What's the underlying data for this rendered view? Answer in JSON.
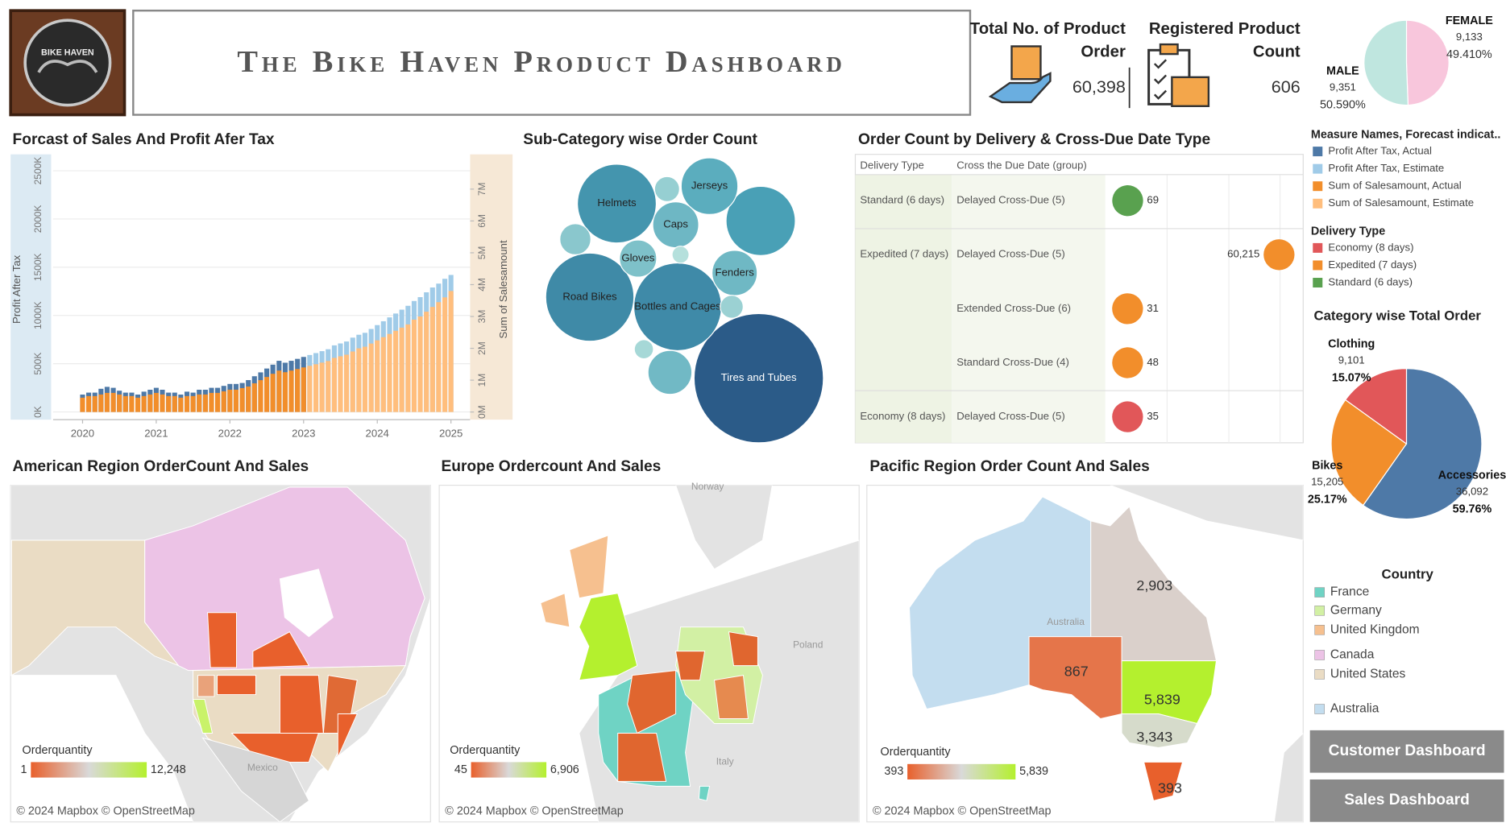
{
  "header": {
    "logo_text": "BIKE HAVEN",
    "title": "The Bike Haven Product Dashboard"
  },
  "kpis": [
    {
      "title": "Total No. of Product Order",
      "value": "60,398"
    },
    {
      "title": "Registered Product Count",
      "value": "606"
    }
  ],
  "chart_data": [
    {
      "type": "pie",
      "categories": [
        "FEMALE",
        "MALE"
      ],
      "values": [
        9133,
        9351
      ],
      "value_labels": [
        "9,133",
        "9,351"
      ],
      "percent_labels": [
        "49.410%",
        "50.590%"
      ],
      "colors": [
        "#f8c6dc",
        "#bfe6df"
      ]
    },
    {
      "type": "bar",
      "title": "Forcast of Sales And Profit Afer Tax",
      "y_label": "Profit After Tax",
      "y2_label": "Sum of Salesamount",
      "legend_title": "Measure Names, Forecast indicat..",
      "x": [
        2020,
        2020.083,
        2020.167,
        2020.25,
        2020.333,
        2020.417,
        2020.5,
        2020.583,
        2020.667,
        2020.75,
        2020.833,
        2020.917,
        2021,
        2021.083,
        2021.167,
        2021.25,
        2021.333,
        2021.417,
        2021.5,
        2021.583,
        2021.667,
        2021.75,
        2021.833,
        2021.917,
        2022,
        2022.083,
        2022.167,
        2022.25,
        2022.333,
        2022.417,
        2022.5,
        2022.583,
        2022.667,
        2022.75,
        2022.833,
        2022.917,
        2023,
        2023.083,
        2023.167,
        2023.25,
        2023.333,
        2023.417,
        2023.5,
        2023.583,
        2023.667,
        2023.75,
        2023.833,
        2023.917,
        2024,
        2024.083,
        2024.167,
        2024.25,
        2024.333,
        2024.417,
        2024.5,
        2024.583,
        2024.667,
        2024.75,
        2024.833,
        2024.917,
        2025
      ],
      "xlim": [
        2019.6,
        2025.26
      ],
      "xticks": [
        2020,
        2021,
        2022,
        2023,
        2024,
        2025
      ],
      "ylim": [
        -80000,
        2620000
      ],
      "yticks": [
        {
          "value": 0,
          "label": "0K"
        },
        {
          "value": 500000,
          "label": "500K"
        },
        {
          "value": 1000000,
          "label": "1000K"
        },
        {
          "value": 1500000,
          "label": "1500K"
        },
        {
          "value": 2000000,
          "label": "2000K"
        },
        {
          "value": 2500000,
          "label": "2500K"
        }
      ],
      "y2lim": [
        -240000,
        7940000
      ],
      "y2ticks": [
        {
          "value": 0,
          "label": "0M"
        },
        {
          "value": 1000000,
          "label": "1M"
        },
        {
          "value": 2000000,
          "label": "2M"
        },
        {
          "value": 3000000,
          "label": "3M"
        },
        {
          "value": 4000000,
          "label": "4M"
        },
        {
          "value": 5000000,
          "label": "5M"
        },
        {
          "value": 6000000,
          "label": "6M"
        },
        {
          "value": 7000000,
          "label": "7M"
        }
      ],
      "grid": true,
      "series": [
        {
          "name": "Profit After Tax, Actual",
          "color": "#4e79a7",
          "values": [
            180000,
            200000,
            200000,
            240000,
            260000,
            250000,
            220000,
            200000,
            200000,
            180000,
            210000,
            230000,
            250000,
            230000,
            200000,
            200000,
            180000,
            210000,
            200000,
            230000,
            230000,
            250000,
            250000,
            270000,
            290000,
            290000,
            300000,
            330000,
            370000,
            410000,
            450000,
            490000,
            530000,
            510000,
            530000,
            550000,
            570000,
            null,
            null,
            null,
            null,
            null,
            null,
            null,
            null,
            null,
            null,
            null,
            null,
            null,
            null,
            null,
            null,
            null,
            null,
            null,
            null,
            null,
            null,
            null,
            null
          ]
        },
        {
          "name": "Profit After Tax, Estimate",
          "color": "#a0cbe8",
          "values": [
            null,
            null,
            null,
            null,
            null,
            null,
            null,
            null,
            null,
            null,
            null,
            null,
            null,
            null,
            null,
            null,
            null,
            null,
            null,
            null,
            null,
            null,
            null,
            null,
            null,
            null,
            null,
            null,
            null,
            null,
            null,
            null,
            null,
            null,
            null,
            null,
            null,
            590000,
            610000,
            630000,
            650000,
            690000,
            710000,
            730000,
            770000,
            800000,
            820000,
            860000,
            900000,
            940000,
            980000,
            1020000,
            1060000,
            1100000,
            1150000,
            1190000,
            1240000,
            1290000,
            1330000,
            1380000,
            1420000
          ]
        },
        {
          "name": "Sum of Salesamount, Actual",
          "color": "#f28e2b",
          "axis": "y2",
          "values": [
            450000,
            500000,
            500000,
            550000,
            600000,
            600000,
            550000,
            500000,
            500000,
            450000,
            500000,
            550000,
            600000,
            550000,
            500000,
            500000,
            450000,
            500000,
            500000,
            550000,
            550000,
            600000,
            600000,
            650000,
            700000,
            700000,
            750000,
            800000,
            900000,
            1000000,
            1100000,
            1200000,
            1300000,
            1250000,
            1300000,
            1350000,
            1400000,
            null,
            null,
            null,
            null,
            null,
            null,
            null,
            null,
            null,
            null,
            null,
            null,
            null,
            null,
            null,
            null,
            null,
            null,
            null,
            null,
            null,
            null,
            null,
            null
          ]
        },
        {
          "name": "Sum of Salesamount, Estimate",
          "color": "#ffbe7d",
          "axis": "y2",
          "values": [
            null,
            null,
            null,
            null,
            null,
            null,
            null,
            null,
            null,
            null,
            null,
            null,
            null,
            null,
            null,
            null,
            null,
            null,
            null,
            null,
            null,
            null,
            null,
            null,
            null,
            null,
            null,
            null,
            null,
            null,
            null,
            null,
            null,
            null,
            null,
            null,
            null,
            1450000,
            1500000,
            1550000,
            1600000,
            1700000,
            1750000,
            1800000,
            1900000,
            2000000,
            2050000,
            2150000,
            2250000,
            2350000,
            2450000,
            2550000,
            2650000,
            2750000,
            2900000,
            3000000,
            3150000,
            3300000,
            3450000,
            3600000,
            3800000
          ]
        }
      ]
    },
    {
      "type": "bubble",
      "title": "Sub-Category wise Order Count",
      "categories": [
        "Tires and Tubes",
        "Road Bikes",
        "Bottles and Cages",
        "Helmets",
        null,
        "Jerseys",
        "Caps",
        "Fenders",
        "Gloves",
        null,
        null,
        null,
        null,
        null,
        null
      ],
      "values": [
        17332,
        8068,
        7981,
        6440,
        4970,
        3332,
        2190,
        2121,
        1430,
        2000,
        1000,
        650,
        300,
        550,
        380
      ],
      "color_scale": [
        "#b5e0dc",
        "#4aa3b8",
        "#2b5b88"
      ]
    },
    {
      "type": "dot",
      "title": "Order Count by Delivery & Cross-Due Date Type",
      "headers": [
        "Delivery Type",
        "Cross the Due Date (group)"
      ],
      "legend_title": "Delivery Type",
      "groups": [
        {
          "name": "Standard (6 days)",
          "color": "#59a14f",
          "categories": [
            "Delayed Cross-Due (5)"
          ],
          "values": [
            69
          ]
        },
        {
          "name": "Expedited (7 days)",
          "color": "#f28e2b",
          "categories": [
            "Delayed Cross-Due (5)",
            "Extended Cross-Due (6)",
            "Standard Cross-Due (4)"
          ],
          "values": [
            60215,
            31,
            48
          ],
          "value_labels": [
            "60,215",
            "31",
            "48"
          ]
        },
        {
          "name": "Economy (8 days)",
          "color": "#e15759",
          "categories": [
            "Delayed Cross-Due (5)"
          ],
          "values": [
            35
          ]
        }
      ]
    },
    {
      "type": "pie",
      "title": "Category wise Total Order",
      "categories": [
        "Accessories",
        "Bikes",
        "Clothing"
      ],
      "values": [
        36092,
        15205,
        9101
      ],
      "value_labels": [
        "36,092",
        "15,205",
        "9,101"
      ],
      "percent_labels": [
        "59.76%",
        "25.17%",
        "15.07%"
      ],
      "colors": [
        "#4e79a7",
        "#f28e2b",
        "#e15759"
      ]
    },
    {
      "type": "map",
      "title": "American Region OrderCount And Sales",
      "legend_title": "Orderquantity",
      "legend_range": [
        {
          "value": 1,
          "label": "1"
        },
        {
          "value": 12248,
          "label": "12,248"
        }
      ],
      "color_scale": [
        "#e8602c",
        "#d9d9d9",
        "#b4f02e"
      ],
      "place_labels": [
        "Mexico"
      ],
      "attribution": "© 2024 Mapbox © OpenStreetMap"
    },
    {
      "type": "map",
      "title": "Europe Ordercount And Sales",
      "legend_title": "Orderquantity",
      "legend_range": [
        {
          "value": 45,
          "label": "45"
        },
        {
          "value": 6906,
          "label": "6,906"
        }
      ],
      "color_scale": [
        "#e8602c",
        "#d9d9d9",
        "#b4f02e"
      ],
      "place_labels": [
        "Norway",
        "Poland",
        "Italy"
      ],
      "attribution": "© 2024 Mapbox © OpenStreetMap"
    },
    {
      "type": "map",
      "title": "Pacific Region Order Count And Sales",
      "legend_title": "Orderquantity",
      "legend_range": [
        {
          "value": 393,
          "label": "393"
        },
        {
          "value": 5839,
          "label": "5,839"
        }
      ],
      "color_scale": [
        "#e8602c",
        "#d9d9d9",
        "#b4f02e"
      ],
      "place_labels": [
        "Australia"
      ],
      "regions": {
        "values": [
          2903,
          867,
          5839,
          3343,
          393
        ],
        "value_labels": [
          "2,903",
          "867",
          "5,839",
          "3,343",
          "393"
        ]
      },
      "attribution": "© 2024 Mapbox © OpenStreetMap"
    }
  ],
  "country_legend": {
    "title": "Country",
    "items": [
      {
        "name": "France",
        "color": "#6fd3c4"
      },
      {
        "name": "Germany",
        "color": "#d2f0a4"
      },
      {
        "name": "United Kingdom",
        "color": "#f6c08f"
      },
      {
        "name": "Canada",
        "color": "#ecc3e6"
      },
      {
        "name": "United States",
        "color": "#eadcc4"
      },
      {
        "name": "Australia",
        "color": "#c3ddef"
      }
    ]
  },
  "buttons": [
    "Customer Dashboard",
    "Sales Dashboard"
  ]
}
